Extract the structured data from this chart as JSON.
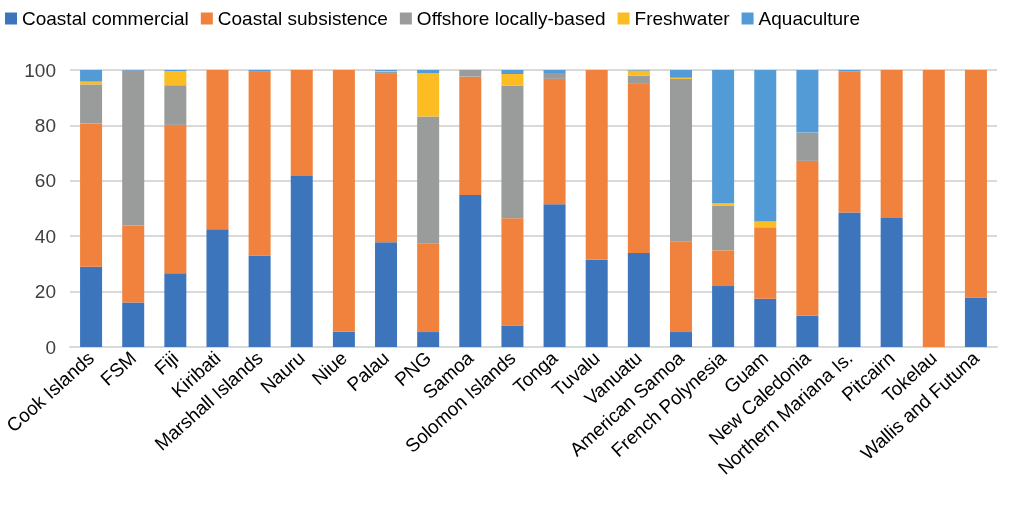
{
  "chart_data": {
    "type": "bar",
    "stacked": true,
    "categories": [
      "Cook Islands",
      "FSM",
      "Fiji",
      "Kiribati",
      "Marshall Islands",
      "Nauru",
      "Niue",
      "Palau",
      "PNG",
      "Samoa",
      "Solomon Islands",
      "Tonga",
      "Tuvalu",
      "Vanuatu",
      "American Samoa",
      "French Polynesia",
      "Guam",
      "New Caledonia",
      "Northern Mariana Is.",
      "Pitcairn",
      "Tokelau",
      "Wallis and Futuna"
    ],
    "series": [
      {
        "name": "Coastal commercial",
        "color": "#3d75bd",
        "values": [
          29,
          16.1,
          26.6,
          42.5,
          33,
          61.7,
          5.5,
          37.8,
          5.4,
          54.9,
          7.8,
          51.5,
          31.5,
          33.9,
          5.4,
          22,
          17.4,
          11.3,
          48.6,
          46.6,
          0,
          17.9
        ]
      },
      {
        "name": "Coastal subsistence",
        "color": "#f0823d",
        "values": [
          51.7,
          27.8,
          53.6,
          57.5,
          66.4,
          38.3,
          94.5,
          60.8,
          32.1,
          42.7,
          38.7,
          45.3,
          68.5,
          61.1,
          32.8,
          12.9,
          25.8,
          55.9,
          50.8,
          53.4,
          100,
          82.1
        ]
      },
      {
        "name": "Offshore locally-based",
        "color": "#9a9c9c",
        "values": [
          14.1,
          55.9,
          14.3,
          0,
          0,
          0,
          0,
          0.8,
          45.7,
          2.4,
          47.9,
          1.8,
          0,
          3,
          58.6,
          16.2,
          0,
          10.2,
          0,
          0,
          0,
          0
        ]
      },
      {
        "name": "Freshwater",
        "color": "#fcbd22",
        "values": [
          1,
          0,
          5.1,
          0,
          0,
          0,
          0,
          0.2,
          15.7,
          0,
          4.2,
          0,
          0,
          1.8,
          0.4,
          0.8,
          2.1,
          0,
          0,
          0,
          0,
          0
        ]
      },
      {
        "name": "Aquaculture",
        "color": "#539bd6",
        "values": [
          4.2,
          0.2,
          0.4,
          0,
          0.6,
          0,
          0,
          0.4,
          1.1,
          0,
          1.4,
          1.4,
          0,
          0.2,
          2.8,
          48.1,
          54.7,
          22.6,
          0.6,
          0,
          0,
          0
        ]
      }
    ],
    "ylim": [
      0,
      100
    ],
    "yticks": [
      0,
      20,
      40,
      60,
      80,
      100
    ],
    "grid": "y",
    "legend": "top"
  }
}
